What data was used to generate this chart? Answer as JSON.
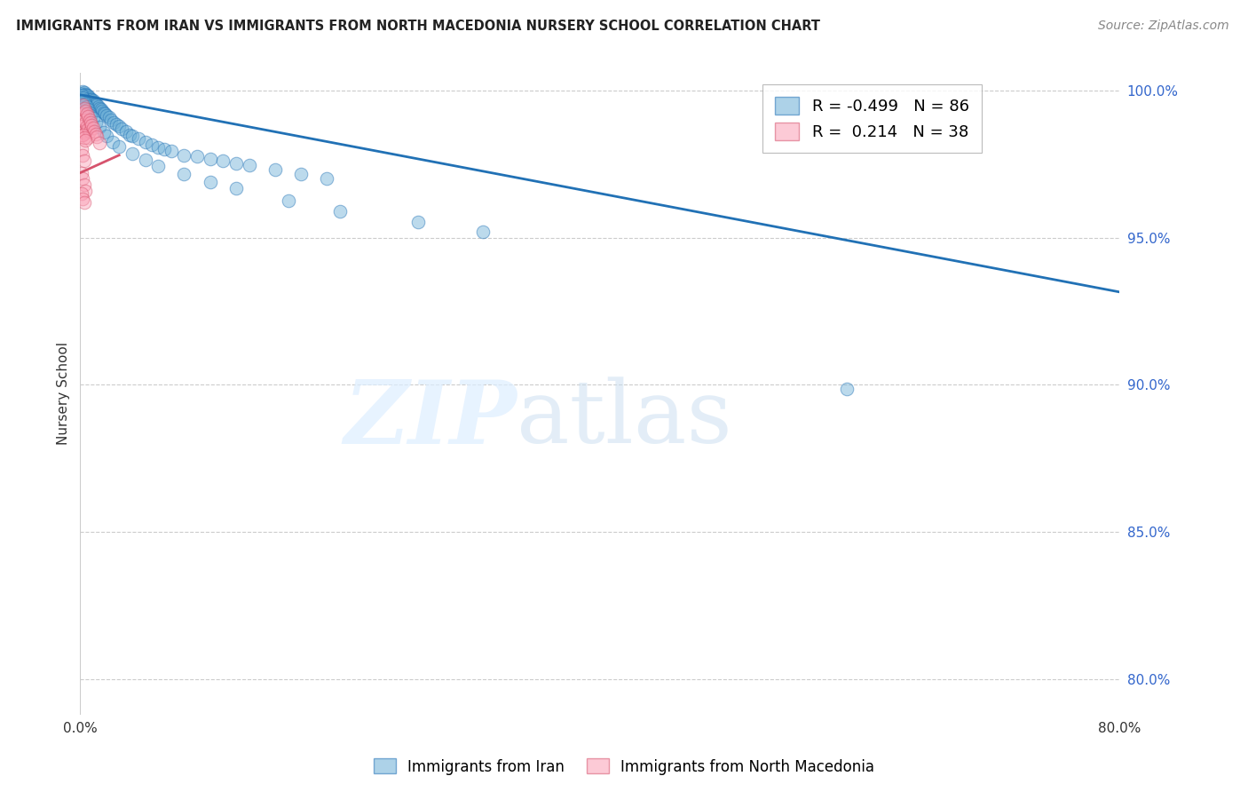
{
  "title": "IMMIGRANTS FROM IRAN VS IMMIGRANTS FROM NORTH MACEDONIA NURSERY SCHOOL CORRELATION CHART",
  "source": "Source: ZipAtlas.com",
  "ylabel": "Nursery School",
  "legend_iran": "Immigrants from Iran",
  "legend_macedonia": "Immigrants from North Macedonia",
  "R_iran": -0.499,
  "N_iran": 86,
  "R_macedonia": 0.214,
  "N_macedonia": 38,
  "color_iran": "#6baed6",
  "color_macedonia": "#fa9fb5",
  "color_iran_line": "#2171b5",
  "color_macedonia_line": "#d6536d",
  "xlim": [
    0.0,
    0.8
  ],
  "ylim": [
    0.788,
    1.006
  ],
  "xticks": [
    0.0,
    0.1,
    0.2,
    0.3,
    0.4,
    0.5,
    0.6,
    0.7,
    0.8
  ],
  "xticklabels": [
    "0.0%",
    "",
    "",
    "",
    "",
    "",
    "",
    "",
    "80.0%"
  ],
  "ytick_positions": [
    0.8,
    0.85,
    0.9,
    0.95,
    1.0
  ],
  "ytick_labels": [
    "80.0%",
    "85.0%",
    "90.0%",
    "95.0%",
    "100.0%"
  ],
  "iran_trend_x0": 0.0,
  "iran_trend_x1": 0.8,
  "iran_trend_y0": 0.9985,
  "iran_trend_y1": 0.9315,
  "macedonia_trend_x0": 0.0,
  "macedonia_trend_x1": 0.03,
  "macedonia_trend_y0": 0.972,
  "macedonia_trend_y1": 0.978,
  "iran_scatter_x": [
    0.001,
    0.001,
    0.002,
    0.002,
    0.002,
    0.003,
    0.003,
    0.003,
    0.003,
    0.004,
    0.004,
    0.004,
    0.005,
    0.005,
    0.005,
    0.006,
    0.006,
    0.006,
    0.007,
    0.007,
    0.008,
    0.008,
    0.009,
    0.009,
    0.01,
    0.01,
    0.011,
    0.012,
    0.013,
    0.014,
    0.015,
    0.016,
    0.017,
    0.018,
    0.019,
    0.02,
    0.022,
    0.024,
    0.026,
    0.028,
    0.03,
    0.032,
    0.035,
    0.038,
    0.04,
    0.045,
    0.05,
    0.055,
    0.06,
    0.065,
    0.07,
    0.08,
    0.09,
    0.1,
    0.11,
    0.12,
    0.13,
    0.15,
    0.17,
    0.19,
    0.001,
    0.002,
    0.003,
    0.004,
    0.005,
    0.006,
    0.007,
    0.008,
    0.01,
    0.012,
    0.015,
    0.018,
    0.02,
    0.025,
    0.03,
    0.04,
    0.05,
    0.06,
    0.08,
    0.1,
    0.12,
    0.16,
    0.2,
    0.26,
    0.31,
    0.59
  ],
  "iran_scatter_y": [
    0.999,
    0.998,
    0.9995,
    0.9985,
    0.9975,
    0.9992,
    0.9983,
    0.997,
    0.996,
    0.9988,
    0.9978,
    0.9965,
    0.9985,
    0.9972,
    0.9958,
    0.998,
    0.9968,
    0.9955,
    0.9975,
    0.9962,
    0.997,
    0.9958,
    0.9968,
    0.9955,
    0.9965,
    0.995,
    0.996,
    0.9955,
    0.995,
    0.9945,
    0.994,
    0.9935,
    0.993,
    0.9925,
    0.992,
    0.9915,
    0.9908,
    0.99,
    0.9892,
    0.9885,
    0.9878,
    0.987,
    0.986,
    0.985,
    0.9845,
    0.9835,
    0.9825,
    0.9815,
    0.9805,
    0.98,
    0.9795,
    0.978,
    0.9775,
    0.9768,
    0.976,
    0.9752,
    0.9745,
    0.973,
    0.9715,
    0.97,
    0.9985,
    0.9975,
    0.9965,
    0.9955,
    0.9945,
    0.9935,
    0.9925,
    0.9915,
    0.9905,
    0.989,
    0.9875,
    0.9858,
    0.9845,
    0.9825,
    0.9808,
    0.9785,
    0.9765,
    0.9742,
    0.9715,
    0.969,
    0.9668,
    0.9625,
    0.9588,
    0.9552,
    0.952,
    0.8985
  ],
  "macedonia_scatter_x": [
    0.001,
    0.001,
    0.001,
    0.002,
    0.002,
    0.002,
    0.003,
    0.003,
    0.003,
    0.004,
    0.004,
    0.004,
    0.005,
    0.005,
    0.006,
    0.006,
    0.006,
    0.007,
    0.007,
    0.008,
    0.009,
    0.01,
    0.011,
    0.012,
    0.013,
    0.015,
    0.002,
    0.003,
    0.001,
    0.002,
    0.003,
    0.004,
    0.001,
    0.002,
    0.003,
    0.002,
    0.003,
    0.004
  ],
  "macedonia_scatter_y": [
    0.99,
    0.985,
    0.98,
    0.995,
    0.992,
    0.988,
    0.994,
    0.99,
    0.986,
    0.993,
    0.989,
    0.9855,
    0.992,
    0.9878,
    0.9912,
    0.987,
    0.984,
    0.99,
    0.9862,
    0.9892,
    0.9882,
    0.9872,
    0.9862,
    0.9852,
    0.9842,
    0.982,
    0.978,
    0.976,
    0.972,
    0.97,
    0.968,
    0.966,
    0.965,
    0.963,
    0.962,
    0.985,
    0.984,
    0.983
  ]
}
